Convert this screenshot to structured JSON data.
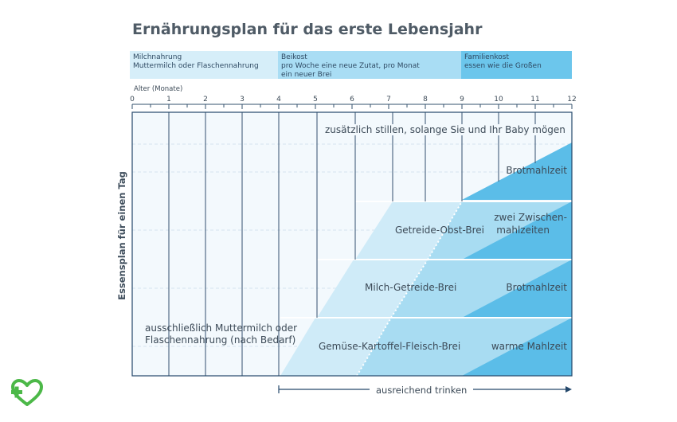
{
  "title": "Ernährungsplan für das erste Lebensjahr",
  "phases": [
    {
      "line1": "Milchnahrung",
      "line2": "Muttermilch oder Flaschennahrung",
      "line3": "",
      "color": "#d6eef9"
    },
    {
      "line1": "Beikost",
      "line2": "pro Woche eine neue Zutat, pro Monat",
      "line3": "ein neuer Brei",
      "color": "#a9ddf4"
    },
    {
      "line1": "Familienkost",
      "line2": "essen wie die Großen",
      "line3": "",
      "color": "#6cc6ec"
    }
  ],
  "axis": {
    "caption": "Alter (Monate)",
    "ticks": [
      "0",
      "1",
      "2",
      "3",
      "4",
      "5",
      "6",
      "7",
      "8",
      "9",
      "10",
      "11",
      "12"
    ]
  },
  "y_axis_label": "Essensplan für einen Tag",
  "labels": {
    "breastfeed_extra": "zusätzlich stillen, solange Sie und Ihr Baby mögen",
    "row1_right": "Brotmahlzeit",
    "row2_mid": "Getreide-Obst-Brei",
    "row2_right_1": "zwei Zwischen-",
    "row2_right_2": "mahlzeiten",
    "row3_mid": "Milch-Getreide-Brei",
    "row3_right": "Brotmahlzeit",
    "row4_left_1": "ausschließlich Muttermilch oder",
    "row4_left_2": "Flaschennahrung (nach Bedarf)",
    "row4_mid": "Gemüse-Kartoffel-Fleisch-Brei",
    "row4_right": "warme Mahlzeit",
    "drink": "ausreichend trinken"
  },
  "colors": {
    "milk_area": "#f3f9fd",
    "porridge": "#cfebf8",
    "porridge_mid": "#a8dcf2",
    "family": "#5bbde8",
    "frame": "#24486b",
    "logo": "#4cb848"
  },
  "chart_data": {
    "type": "table",
    "x_unit": "Alter (Monate)",
    "x_range": [
      0,
      12
    ],
    "transitions": [
      {
        "meal": "Gemüse-Kartoffel-Fleisch-Brei",
        "start_month": 4,
        "family_start_month": 9
      },
      {
        "meal": "Milch-Getreide-Brei",
        "start_month": 6,
        "family_start_month": 10
      },
      {
        "meal": "Getreide-Obst-Brei",
        "start_month": 7,
        "family_start_month": 10
      },
      {
        "meal": "Brotmahlzeit",
        "start_month": 9
      }
    ]
  }
}
